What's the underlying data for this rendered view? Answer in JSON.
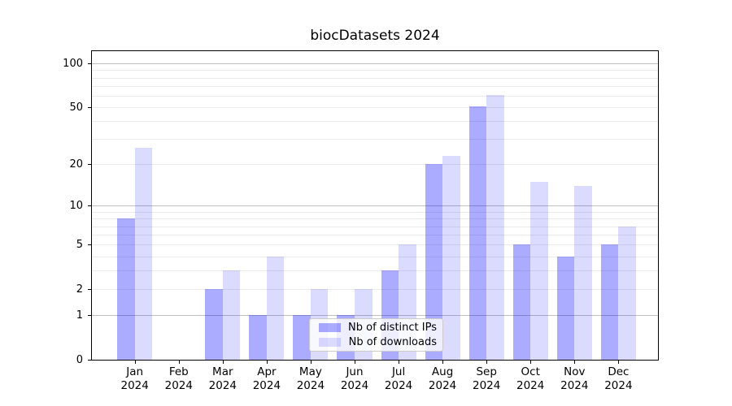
{
  "title": "biocDatasets 2024",
  "chart_data": {
    "type": "bar",
    "title": "biocDatasets 2024",
    "categories": [
      "Jan 2024",
      "Feb 2024",
      "Mar 2024",
      "Apr 2024",
      "May 2024",
      "Jun 2024",
      "Jul 2024",
      "Aug 2024",
      "Sep 2024",
      "Oct 2024",
      "Nov 2024",
      "Dec 2024"
    ],
    "series": [
      {
        "name": "Nb of distinct IPs",
        "color": "rgba(0,0,255,0.33)",
        "values": [
          8,
          0,
          2,
          1,
          1,
          1,
          3,
          20,
          51,
          5,
          4,
          5
        ]
      },
      {
        "name": "Nb of downloads",
        "color": "rgba(0,0,255,0.14)",
        "values": [
          26,
          0,
          3,
          4,
          2,
          2,
          5,
          23,
          61,
          15,
          14,
          7
        ]
      }
    ],
    "yscale": "log1p",
    "yticks": [
      100,
      50,
      20,
      10,
      5,
      2,
      1,
      0
    ],
    "ylim": [
      0,
      125
    ],
    "xlabel": "",
    "ylabel": "",
    "grid": "both",
    "legend_position": "inside-lower-center"
  },
  "colors": {
    "background": "#ffffff",
    "spine": "#000000",
    "major_grid": "#c0c0c0",
    "minor_grid": "#ebebeb"
  }
}
